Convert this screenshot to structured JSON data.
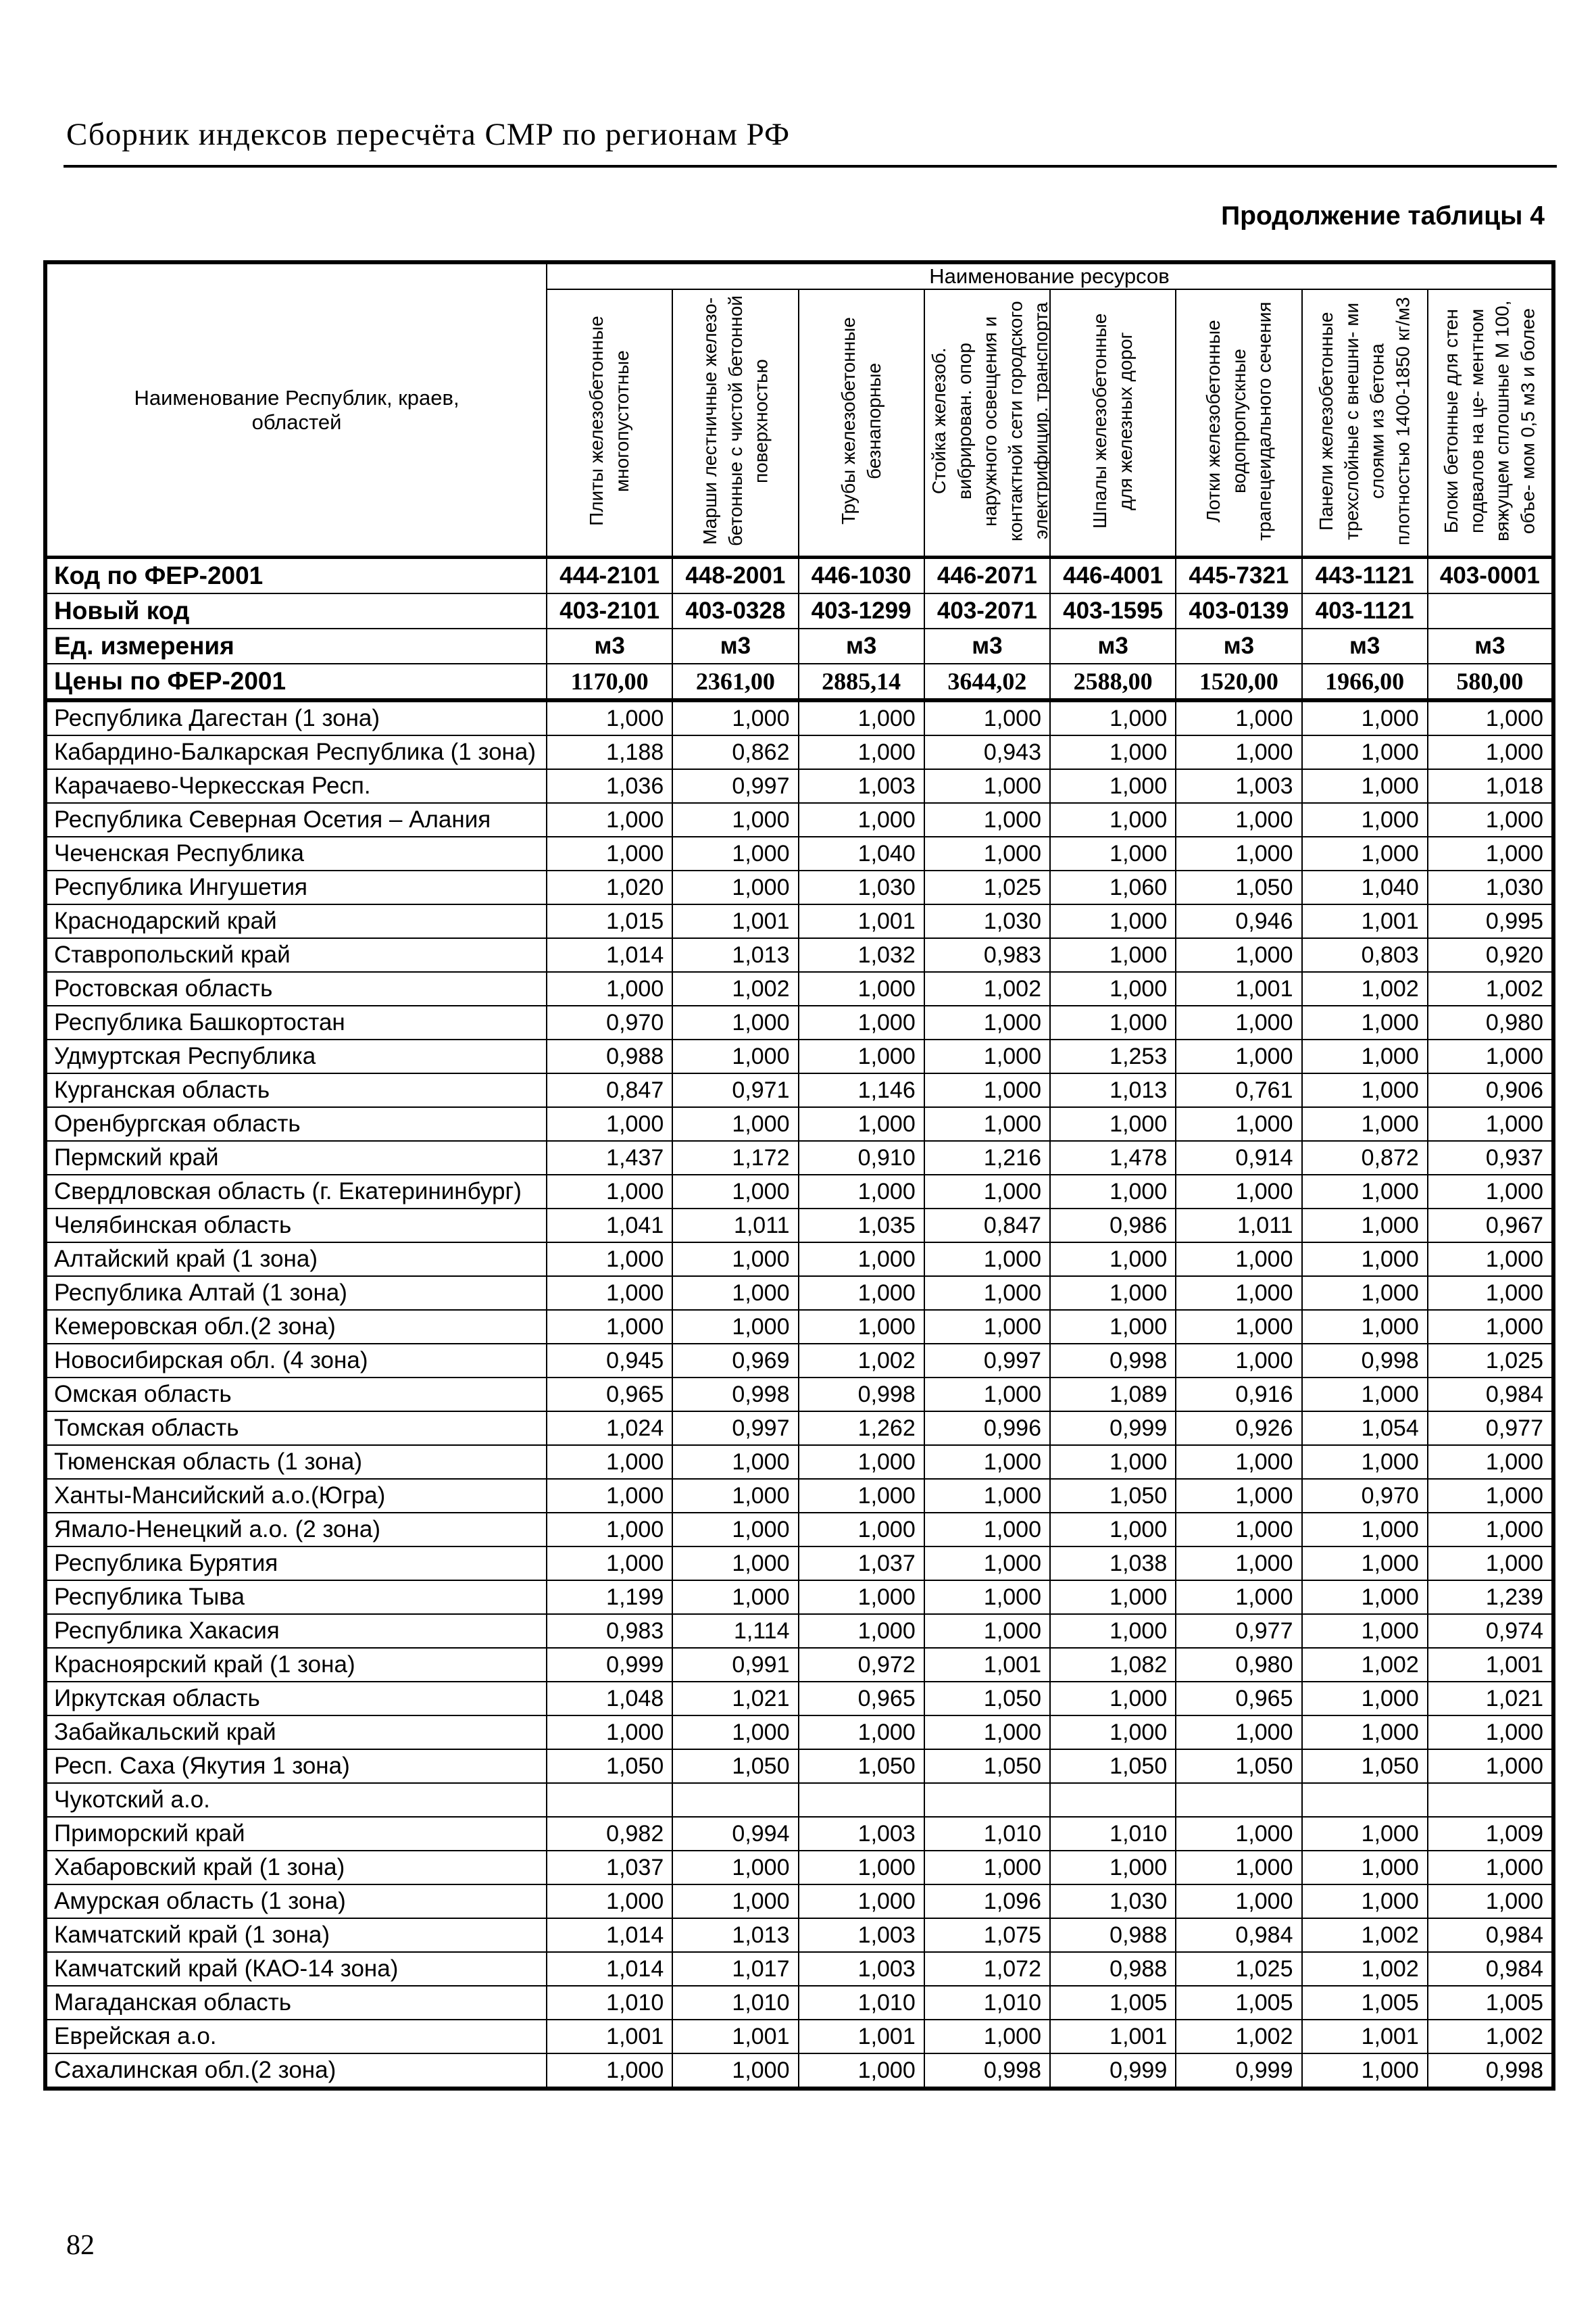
{
  "page": {
    "header_title": "Сборник индексов пересчёта СМР по регионам РФ",
    "table_caption": "Продолжение таблицы 4",
    "page_number": "82"
  },
  "table": {
    "resources_header": "Наименование ресурсов",
    "region_header": "Наименование Республик, краев, областей",
    "columns": [
      "Плиты железобетонные многопустотные",
      "Марши лестничные железо- бетонные с чистой бетонной поверхностью",
      "Трубы железобетонные безнапорные",
      "Стойка железоб. вибрирован. опор наружного освещения и контактной сети городского электрифицир. транспорта",
      "Шпалы железобетонные для железных дорог",
      "Лотки железобетонные водопропускные трапецеидального сечения",
      "Панели железобетонные трехслойные с внешни- ми слоями из бетона плотностью 1400-1850 кг/м3",
      "Блоки бетонные для стен подвалов на це- ментном вяжущем сплошные М 100, объе- мом 0,5 м3 и более"
    ],
    "meta_rows": [
      {
        "label": "Код по ФЕР-2001",
        "style": "meta",
        "values": [
          "444-2101",
          "448-2001",
          "446-1030",
          "446-2071",
          "446-4001",
          "445-7321",
          "443-1121",
          "403-0001"
        ]
      },
      {
        "label": "Новый код",
        "style": "meta",
        "values": [
          "403-2101",
          "403-0328",
          "403-1299",
          "403-2071",
          "403-1595",
          "403-0139",
          "403-1121",
          ""
        ]
      },
      {
        "label": "Ед. измерения",
        "style": "meta",
        "values": [
          "м3",
          "м3",
          "м3",
          "м3",
          "м3",
          "м3",
          "м3",
          "м3"
        ]
      },
      {
        "label": "Цены по ФЕР-2001",
        "style": "meta price",
        "values": [
          "1170,00",
          "2361,00",
          "2885,14",
          "3644,02",
          "2588,00",
          "1520,00",
          "1966,00",
          "580,00"
        ]
      }
    ],
    "rows": [
      {
        "name": "Республика Дагестан (1 зона)",
        "values": [
          "1,000",
          "1,000",
          "1,000",
          "1,000",
          "1,000",
          "1,000",
          "1,000",
          "1,000"
        ]
      },
      {
        "name": "Кабардино-Балкарская Республика (1 зона)",
        "values": [
          "1,188",
          "0,862",
          "1,000",
          "0,943",
          "1,000",
          "1,000",
          "1,000",
          "1,000"
        ]
      },
      {
        "name": "Карачаево-Черкесская Респ.",
        "values": [
          "1,036",
          "0,997",
          "1,003",
          "1,000",
          "1,000",
          "1,003",
          "1,000",
          "1,018"
        ]
      },
      {
        "name": "Республика Северная Осетия – Алания",
        "values": [
          "1,000",
          "1,000",
          "1,000",
          "1,000",
          "1,000",
          "1,000",
          "1,000",
          "1,000"
        ]
      },
      {
        "name": "Чеченская Республика",
        "values": [
          "1,000",
          "1,000",
          "1,040",
          "1,000",
          "1,000",
          "1,000",
          "1,000",
          "1,000"
        ]
      },
      {
        "name": "Республика Ингушетия",
        "values": [
          "1,020",
          "1,000",
          "1,030",
          "1,025",
          "1,060",
          "1,050",
          "1,040",
          "1,030"
        ]
      },
      {
        "name": "Краснодарский край",
        "values": [
          "1,015",
          "1,001",
          "1,001",
          "1,030",
          "1,000",
          "0,946",
          "1,001",
          "0,995"
        ]
      },
      {
        "name": "Ставропольский край",
        "values": [
          "1,014",
          "1,013",
          "1,032",
          "0,983",
          "1,000",
          "1,000",
          "0,803",
          "0,920"
        ]
      },
      {
        "name": "Ростовская область",
        "values": [
          "1,000",
          "1,002",
          "1,000",
          "1,002",
          "1,000",
          "1,001",
          "1,002",
          "1,002"
        ]
      },
      {
        "name": "Республика Башкортостан",
        "values": [
          "0,970",
          "1,000",
          "1,000",
          "1,000",
          "1,000",
          "1,000",
          "1,000",
          "0,980"
        ]
      },
      {
        "name": "Удмуртская Республика",
        "values": [
          "0,988",
          "1,000",
          "1,000",
          "1,000",
          "1,253",
          "1,000",
          "1,000",
          "1,000"
        ]
      },
      {
        "name": "Курганская область",
        "values": [
          "0,847",
          "0,971",
          "1,146",
          "1,000",
          "1,013",
          "0,761",
          "1,000",
          "0,906"
        ]
      },
      {
        "name": "Оренбургская область",
        "values": [
          "1,000",
          "1,000",
          "1,000",
          "1,000",
          "1,000",
          "1,000",
          "1,000",
          "1,000"
        ]
      },
      {
        "name": "Пермский край",
        "values": [
          "1,437",
          "1,172",
          "0,910",
          "1,216",
          "1,478",
          "0,914",
          "0,872",
          "0,937"
        ]
      },
      {
        "name": "Свердловская область (г. Екатерининбург)",
        "values": [
          "1,000",
          "1,000",
          "1,000",
          "1,000",
          "1,000",
          "1,000",
          "1,000",
          "1,000"
        ]
      },
      {
        "name": "Челябинская область",
        "values": [
          "1,041",
          "1,011",
          "1,035",
          "0,847",
          "0,986",
          "1,011",
          "1,000",
          "0,967"
        ]
      },
      {
        "name": "Алтайский край (1 зона)",
        "values": [
          "1,000",
          "1,000",
          "1,000",
          "1,000",
          "1,000",
          "1,000",
          "1,000",
          "1,000"
        ]
      },
      {
        "name": "Республика Алтай (1 зона)",
        "values": [
          "1,000",
          "1,000",
          "1,000",
          "1,000",
          "1,000",
          "1,000",
          "1,000",
          "1,000"
        ]
      },
      {
        "name": "Кемеровская обл.(2 зона)",
        "values": [
          "1,000",
          "1,000",
          "1,000",
          "1,000",
          "1,000",
          "1,000",
          "1,000",
          "1,000"
        ]
      },
      {
        "name": "Новосибирская обл. (4 зона)",
        "values": [
          "0,945",
          "0,969",
          "1,002",
          "0,997",
          "0,998",
          "1,000",
          "0,998",
          "1,025"
        ]
      },
      {
        "name": "Омская область",
        "values": [
          "0,965",
          "0,998",
          "0,998",
          "1,000",
          "1,089",
          "0,916",
          "1,000",
          "0,984"
        ]
      },
      {
        "name": "Томская область",
        "values": [
          "1,024",
          "0,997",
          "1,262",
          "0,996",
          "0,999",
          "0,926",
          "1,054",
          "0,977"
        ]
      },
      {
        "name": "Тюменская область (1 зона)",
        "values": [
          "1,000",
          "1,000",
          "1,000",
          "1,000",
          "1,000",
          "1,000",
          "1,000",
          "1,000"
        ]
      },
      {
        "name": "Ханты-Мансийский а.о.(Югра)",
        "values": [
          "1,000",
          "1,000",
          "1,000",
          "1,000",
          "1,050",
          "1,000",
          "0,970",
          "1,000"
        ]
      },
      {
        "name": "Ямало-Ненецкий а.о. (2 зона)",
        "values": [
          "1,000",
          "1,000",
          "1,000",
          "1,000",
          "1,000",
          "1,000",
          "1,000",
          "1,000"
        ]
      },
      {
        "name": "Республика Бурятия",
        "values": [
          "1,000",
          "1,000",
          "1,037",
          "1,000",
          "1,038",
          "1,000",
          "1,000",
          "1,000"
        ]
      },
      {
        "name": "Республика Тыва",
        "values": [
          "1,199",
          "1,000",
          "1,000",
          "1,000",
          "1,000",
          "1,000",
          "1,000",
          "1,239"
        ]
      },
      {
        "name": "Республика Хакасия",
        "values": [
          "0,983",
          "1,114",
          "1,000",
          "1,000",
          "1,000",
          "0,977",
          "1,000",
          "0,974"
        ]
      },
      {
        "name": "Красноярский край (1 зона)",
        "values": [
          "0,999",
          "0,991",
          "0,972",
          "1,001",
          "1,082",
          "0,980",
          "1,002",
          "1,001"
        ]
      },
      {
        "name": "Иркутская область",
        "values": [
          "1,048",
          "1,021",
          "0,965",
          "1,050",
          "1,000",
          "0,965",
          "1,000",
          "1,021"
        ]
      },
      {
        "name": "Забайкальский край",
        "values": [
          "1,000",
          "1,000",
          "1,000",
          "1,000",
          "1,000",
          "1,000",
          "1,000",
          "1,000"
        ]
      },
      {
        "name": "Респ. Саха (Якутия 1 зона)",
        "values": [
          "1,050",
          "1,050",
          "1,050",
          "1,050",
          "1,050",
          "1,050",
          "1,050",
          "1,000"
        ]
      },
      {
        "name": "Чукотский а.о.",
        "values": [
          "",
          "",
          "",
          "",
          "",
          "",
          "",
          ""
        ]
      },
      {
        "name": "Приморский край",
        "values": [
          "0,982",
          "0,994",
          "1,003",
          "1,010",
          "1,010",
          "1,000",
          "1,000",
          "1,009"
        ]
      },
      {
        "name": "Хабаровский край (1 зона)",
        "values": [
          "1,037",
          "1,000",
          "1,000",
          "1,000",
          "1,000",
          "1,000",
          "1,000",
          "1,000"
        ]
      },
      {
        "name": "Амурская область (1 зона)",
        "values": [
          "1,000",
          "1,000",
          "1,000",
          "1,096",
          "1,030",
          "1,000",
          "1,000",
          "1,000"
        ]
      },
      {
        "name": "Камчатский край (1 зона)",
        "values": [
          "1,014",
          "1,013",
          "1,003",
          "1,075",
          "0,988",
          "0,984",
          "1,002",
          "0,984"
        ]
      },
      {
        "name": "Камчатский край (КАО-14 зона)",
        "values": [
          "1,014",
          "1,017",
          "1,003",
          "1,072",
          "0,988",
          "1,025",
          "1,002",
          "0,984"
        ]
      },
      {
        "name": "Магаданская область",
        "values": [
          "1,010",
          "1,010",
          "1,010",
          "1,010",
          "1,005",
          "1,005",
          "1,005",
          "1,005"
        ]
      },
      {
        "name": "Еврейская а.о.",
        "values": [
          "1,001",
          "1,001",
          "1,001",
          "1,000",
          "1,001",
          "1,002",
          "1,001",
          "1,002"
        ]
      },
      {
        "name": "Сахалинская обл.(2 зона)",
        "values": [
          "1,000",
          "1,000",
          "1,000",
          "0,998",
          "0,999",
          "0,999",
          "1,000",
          "0,998"
        ]
      }
    ]
  }
}
